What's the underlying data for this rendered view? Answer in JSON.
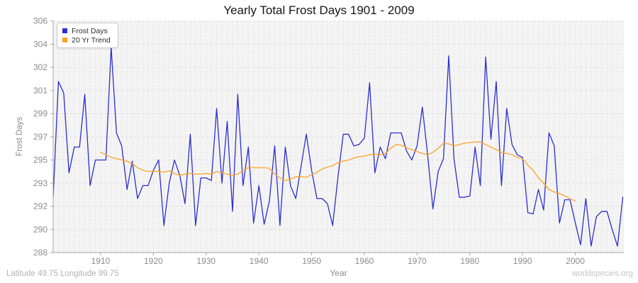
{
  "title": "Yearly Total Frost Days 1901 - 2009",
  "legend": {
    "items": [
      {
        "label": "Frost Days",
        "color": "#2d2dd2"
      },
      {
        "label": "20 Yr Trend",
        "color": "#ffa226"
      }
    ]
  },
  "axes": {
    "y": {
      "label": "Frost Days",
      "tick_labels": [
        "306",
        "304",
        "302",
        "301",
        "299",
        "297",
        "295",
        "293",
        "292",
        "290",
        "288"
      ],
      "tick_values": [
        306,
        304.2,
        302.4,
        300.6,
        298.8,
        297,
        295.2,
        293.4,
        291.6,
        289.8,
        288
      ],
      "range": [
        288,
        306
      ]
    },
    "x": {
      "label": "Year",
      "tick_labels": [
        "1910",
        "1920",
        "1930",
        "1940",
        "1950",
        "1960",
        "1970",
        "1980",
        "1990",
        "2000"
      ],
      "tick_values": [
        1910,
        1920,
        1930,
        1940,
        1950,
        1960,
        1970,
        1980,
        1990,
        2000
      ],
      "range": [
        1901,
        2009
      ]
    }
  },
  "footer": {
    "left": "Latitude 49.75 Longitude 99.75",
    "right": "worldspecies.org"
  },
  "colors": {
    "frost_line": "#2d2dd2",
    "trend_line": "#ffa226",
    "plot_background": "#f4f4f4",
    "grid_vertical": "#e4e4e4",
    "grid_horizontal": "#dcdcdc",
    "spine": "#a6a6a6",
    "tick_text": "#8c8c8c"
  },
  "chart_data": {
    "type": "line",
    "title": "Yearly Total Frost Days 1901 - 2009",
    "xlabel": "Year",
    "ylabel": "Frost Days",
    "ylim": [
      288,
      306
    ],
    "x_range": [
      1901,
      2009
    ],
    "grid": true,
    "legend_position": "upper-left",
    "series": [
      {
        "name": "Frost Days",
        "color": "#2d2dd2",
        "start_year": 1901,
        "values": [
          292.3,
          301.3,
          300.4,
          294.2,
          296.2,
          296.2,
          300.3,
          293.2,
          295.2,
          295.2,
          295.2,
          304.0,
          297.3,
          296.3,
          292.9,
          295.1,
          292.2,
          293.2,
          293.2,
          294.4,
          295.2,
          290.1,
          293.4,
          295.2,
          294.0,
          291.8,
          297.2,
          290.1,
          293.8,
          293.8,
          293.6,
          299.2,
          293.4,
          298.2,
          291.2,
          300.3,
          293.2,
          296.2,
          290.3,
          293.2,
          290.2,
          292.0,
          296.3,
          290.1,
          296.2,
          293.2,
          292.2,
          294.7,
          297.2,
          294.4,
          292.2,
          292.2,
          291.8,
          290.1,
          293.9,
          297.2,
          297.2,
          296.3,
          296.4,
          296.9,
          301.2,
          294.2,
          296.2,
          295.3,
          297.3,
          297.3,
          297.3,
          295.9,
          295.2,
          296.3,
          299.3,
          295.6,
          291.4,
          294.3,
          295.3,
          303.3,
          295.3,
          292.3,
          292.3,
          292.4,
          296.2,
          293.2,
          303.2,
          296.8,
          301.3,
          293.2,
          299.2,
          296.4,
          295.6,
          295.4,
          291.1,
          291.0,
          292.9,
          291.3,
          297.3,
          296.3,
          290.3,
          292.1,
          292.1,
          290.3,
          288.6,
          292.2,
          288.5,
          290.8,
          291.2,
          291.2,
          289.8,
          288.5,
          292.3
        ]
      },
      {
        "name": "20 Yr Trend",
        "color": "#ffa226",
        "start_year": 1910,
        "values": [
          295.8,
          295.6,
          295.4,
          295.3,
          295.2,
          295.1,
          294.9,
          294.6,
          294.4,
          294.3,
          294.3,
          294.3,
          294.25,
          294.35,
          294.15,
          294.0,
          294.1,
          294.15,
          294.1,
          294.1,
          294.15,
          294.1,
          294.3,
          294.2,
          294.1,
          294.0,
          294.1,
          294.4,
          294.6,
          294.6,
          294.6,
          294.6,
          294.55,
          294.1,
          293.8,
          293.6,
          293.7,
          293.9,
          293.9,
          293.85,
          294.05,
          294.25,
          294.5,
          294.65,
          294.75,
          295.0,
          295.1,
          295.2,
          295.35,
          295.45,
          295.5,
          295.6,
          295.65,
          295.6,
          295.7,
          296.1,
          296.4,
          296.35,
          296.15,
          296.0,
          295.85,
          295.7,
          295.6,
          295.8,
          296.1,
          296.5,
          296.45,
          296.3,
          296.4,
          296.5,
          296.55,
          296.6,
          296.6,
          296.4,
          296.2,
          296.0,
          295.8,
          295.7,
          295.6,
          295.4,
          295.3,
          294.8,
          294.4,
          293.8,
          293.4,
          292.9,
          292.7,
          292.6,
          292.4,
          292.2,
          292.0
        ]
      }
    ]
  }
}
